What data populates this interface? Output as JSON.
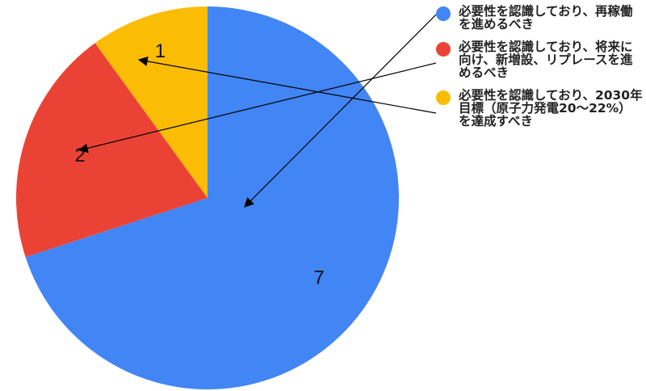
{
  "chart_data": {
    "type": "pie",
    "title": "",
    "slices": [
      {
        "label": "必要性を認識しており、再稼働を進めるべき",
        "value": 7,
        "color": "#4285f4"
      },
      {
        "label": "必要性を認識しており、将来に向け、新増設、リプレースを進めるべき",
        "value": 2,
        "color": "#ea4335"
      },
      {
        "label": "必要性を認識しており、2030年目標（原子力発電20〜22%）を達成すべき",
        "value": 1,
        "color": "#fbbc04"
      }
    ],
    "legend_position": "right",
    "data_labels": [
      "7",
      "2",
      "1"
    ]
  }
}
